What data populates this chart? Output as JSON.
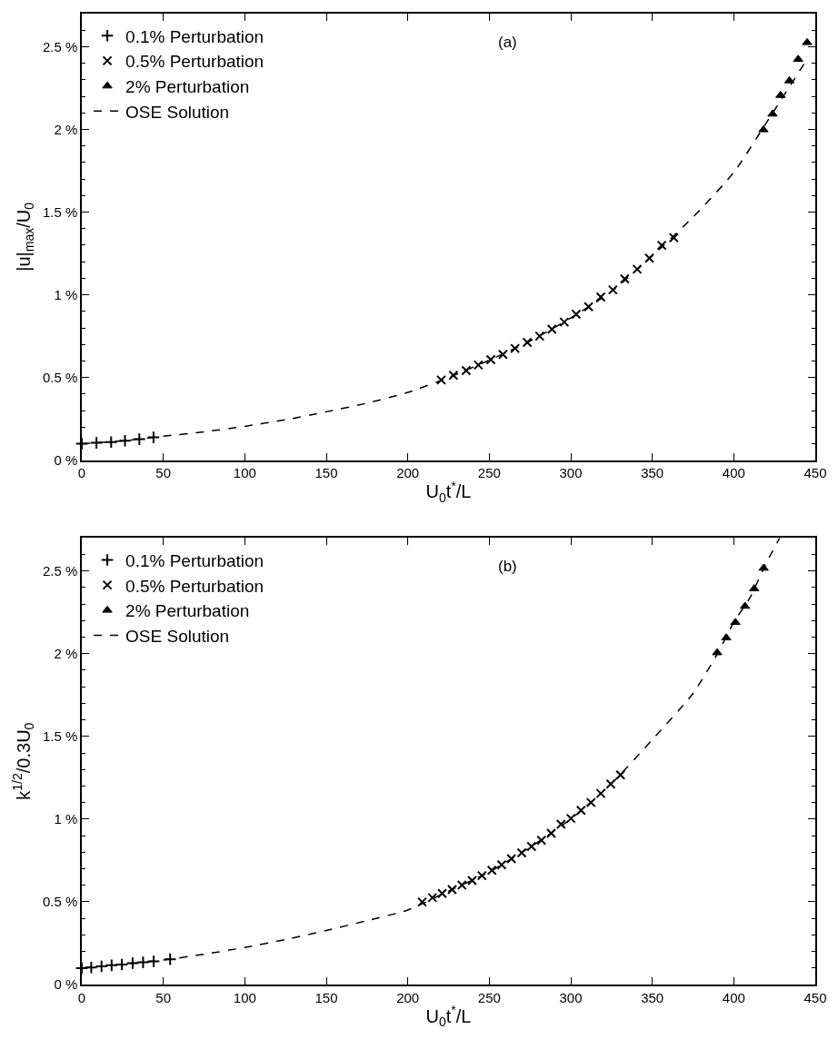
{
  "chart_data": [
    {
      "type": "scatter",
      "xlabel": "U$_{0}$t$^{*}$/L",
      "ylabel": "|u|$_{max}$/U$_{0}$",
      "annotations": [
        "(a)"
      ],
      "legend": "top left",
      "xlim": [
        0,
        450
      ],
      "xticks": [
        0,
        50,
        100,
        150,
        200,
        250,
        300,
        350,
        400,
        450
      ],
      "ylim": [
        0,
        2.7
      ],
      "yticks": [
        {
          "value": 0,
          "label": "0 %"
        },
        {
          "value": 0.5,
          "label": "0.5 %"
        },
        {
          "value": 1,
          "label": "1 %"
        },
        {
          "value": 1.5,
          "label": "1.5 %"
        },
        {
          "value": 2,
          "label": "2 %"
        },
        {
          "value": 2.5,
          "label": "2.5 %"
        }
      ],
      "series": [
        {
          "name": "0.1% Perturbation",
          "color": "#000000",
          "marker": "cross",
          "x": [
            0,
            9,
            18,
            26.5,
            35.3,
            44
          ],
          "values": [
            0.1,
            0.105,
            0.11,
            0.118,
            0.127,
            0.138
          ]
        },
        {
          "name": "0.5% Perturbation",
          "color": "#000000",
          "marker": "x",
          "x": [
            220.5,
            228.0,
            235.8,
            243.3,
            250.9,
            258.4,
            265.8,
            273.3,
            280.9,
            288.4,
            296.0,
            303.3,
            310.9,
            318.4,
            325.8,
            333.1,
            340.7,
            348.2,
            355.8,
            363.2
          ],
          "values": [
            0.485,
            0.513,
            0.542,
            0.576,
            0.608,
            0.64,
            0.676,
            0.712,
            0.75,
            0.792,
            0.835,
            0.883,
            0.928,
            0.987,
            1.03,
            1.097,
            1.155,
            1.222,
            1.299,
            1.345
          ]
        },
        {
          "name": "2% Perturbation",
          "color": "#000000",
          "marker": "triangle",
          "x": [
            418.2,
            423.8,
            428.7,
            434.1,
            439.5,
            445.0
          ],
          "values": [
            1.998,
            2.093,
            2.206,
            2.294,
            2.424,
            2.525
          ]
        },
        {
          "name": "OSE Solution",
          "type": "line",
          "color": "#000000",
          "line_style": "dashed",
          "marker": "none",
          "x": [
            0,
            25,
            50,
            75,
            100,
            125,
            150,
            175,
            200,
            225,
            250,
            275,
            300,
            325,
            350,
            375,
            400,
            420,
            444
          ],
          "values": [
            0.1,
            0.117,
            0.145,
            0.172,
            0.205,
            0.245,
            0.293,
            0.345,
            0.41,
            0.5,
            0.605,
            0.72,
            0.86,
            1.02,
            1.235,
            1.47,
            1.74,
            2.04,
            2.41
          ]
        }
      ]
    },
    {
      "type": "scatter",
      "xlabel": "U$_{0}$t$^{*}$/L",
      "ylabel": "k$^{1/2}$/0.3U$_{0}$",
      "annotations": [
        "(b)"
      ],
      "legend": "top left",
      "xlim": [
        0,
        450
      ],
      "xticks": [
        0,
        50,
        100,
        150,
        200,
        250,
        300,
        350,
        400,
        450
      ],
      "ylim": [
        0,
        2.7
      ],
      "yticks": [
        {
          "value": 0,
          "label": "0 %"
        },
        {
          "value": 0.5,
          "label": "0.5 %"
        },
        {
          "value": 1,
          "label": "1 %"
        },
        {
          "value": 1.5,
          "label": "1.5 %"
        },
        {
          "value": 2,
          "label": "2 %"
        },
        {
          "value": 2.5,
          "label": "2.5 %"
        }
      ],
      "series": [
        {
          "name": "0.1% Perturbation",
          "color": "#000000",
          "marker": "cross",
          "x": [
            0,
            5.8,
            12.1,
            18.3,
            24.6,
            31.2,
            37.6,
            44.1,
            54.2
          ],
          "values": [
            0.099,
            0.103,
            0.11,
            0.116,
            0.121,
            0.129,
            0.134,
            0.14,
            0.153
          ]
        },
        {
          "name": "0.5% Perturbation",
          "color": "#000000",
          "marker": "x",
          "x": [
            208.8,
            215.1,
            221.1,
            227.2,
            233.2,
            239.5,
            245.5,
            251.6,
            257.6,
            263.6,
            269.9,
            275.9,
            282.0,
            288.0,
            294.0,
            300.1,
            306.3,
            312.4,
            318.4,
            324.5,
            330.5
          ],
          "values": [
            0.499,
            0.525,
            0.55,
            0.574,
            0.601,
            0.629,
            0.658,
            0.69,
            0.723,
            0.76,
            0.796,
            0.835,
            0.872,
            0.914,
            0.969,
            1.004,
            1.053,
            1.1,
            1.155,
            1.212,
            1.267
          ]
        },
        {
          "name": "2% Perturbation",
          "color": "#000000",
          "marker": "triangle",
          "x": [
            389.8,
            395.4,
            401.0,
            406.9,
            412.5,
            418.3
          ],
          "values": [
            2.006,
            2.096,
            2.189,
            2.287,
            2.393,
            2.517
          ]
        },
        {
          "name": "OSE Solution",
          "type": "line",
          "color": "#000000",
          "line_style": "dashed",
          "marker": "none",
          "x": [
            0,
            25,
            50,
            75,
            100,
            125,
            150,
            175,
            200,
            225,
            250,
            275,
            300,
            325,
            350,
            375,
            390,
            400,
            410,
            420,
            428.2
          ],
          "values": [
            0.1,
            0.122,
            0.148,
            0.183,
            0.224,
            0.272,
            0.327,
            0.386,
            0.45,
            0.565,
            0.68,
            0.83,
            1.0,
            1.215,
            1.48,
            1.76,
            2.0,
            2.19,
            2.34,
            2.55,
            2.7
          ]
        }
      ]
    }
  ]
}
